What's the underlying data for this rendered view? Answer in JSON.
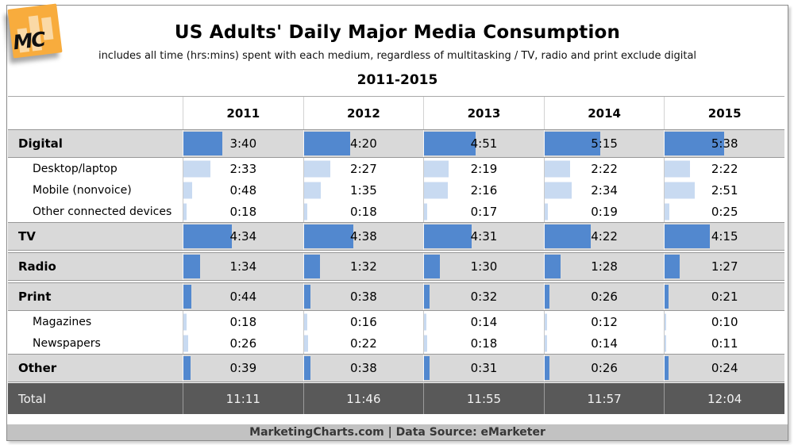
{
  "logo": {
    "text": "MC"
  },
  "header": {
    "title": "US Adults' Daily Major Media Consumption",
    "subtitle": "includes all time (hrs:mins) spent with each medium, regardless of multitasking / TV, radio and print exclude digital",
    "period": "2011-2015"
  },
  "chart_data": {
    "type": "table",
    "title": "US Adults' Daily Major Media Consumption",
    "subtitle": "includes all time (hrs:mins) spent with each medium, regardless of multitasking / TV, radio and print exclude digital",
    "period": "2011-2015",
    "unit": "hrs:mins per day",
    "columns": [
      "2011",
      "2012",
      "2013",
      "2014",
      "2015"
    ],
    "rows": [
      {
        "label": "Digital",
        "level": "main",
        "values": [
          "3:40",
          "4:20",
          "4:51",
          "5:15",
          "5:38"
        ]
      },
      {
        "label": "Desktop/laptop",
        "level": "sub",
        "values": [
          "2:33",
          "2:27",
          "2:19",
          "2:22",
          "2:22"
        ]
      },
      {
        "label": "Mobile (nonvoice)",
        "level": "sub",
        "values": [
          "0:48",
          "1:35",
          "2:16",
          "2:34",
          "2:51"
        ]
      },
      {
        "label": "Other connected devices",
        "level": "sub",
        "values": [
          "0:18",
          "0:18",
          "0:17",
          "0:19",
          "0:25"
        ]
      },
      {
        "label": "TV",
        "level": "main",
        "values": [
          "4:34",
          "4:38",
          "4:31",
          "4:22",
          "4:15"
        ]
      },
      {
        "label": "Radio",
        "level": "main",
        "values": [
          "1:34",
          "1:32",
          "1:30",
          "1:28",
          "1:27"
        ]
      },
      {
        "label": "Print",
        "level": "main",
        "values": [
          "0:44",
          "0:38",
          "0:32",
          "0:26",
          "0:21"
        ]
      },
      {
        "label": "Magazines",
        "level": "sub",
        "values": [
          "0:18",
          "0:16",
          "0:14",
          "0:12",
          "0:10"
        ]
      },
      {
        "label": "Newspapers",
        "level": "sub",
        "values": [
          "0:26",
          "0:22",
          "0:18",
          "0:14",
          "0:11"
        ]
      },
      {
        "label": "Other",
        "level": "main",
        "values": [
          "0:39",
          "0:38",
          "0:31",
          "0:26",
          "0:24"
        ]
      },
      {
        "label": "Total",
        "level": "total",
        "values": [
          "11:11",
          "11:46",
          "11:55",
          "11:57",
          "12:04"
        ]
      }
    ],
    "layout": {
      "bars": "embedded horizontal, proportional to minutes",
      "legend": "none",
      "grid": "row stripes"
    }
  },
  "footer": {
    "text": "MarketingCharts.com | Data Source: eMarketer"
  },
  "colors": {
    "bar_main": "#5288CF",
    "bar_sub": "#C8DAF1",
    "stripe_gray": "#D9D9D9",
    "total_bg": "#595959",
    "footer_bg": "#C2C2C2",
    "logo_orange": "#F8AC3D",
    "logo_bar": "#FAD9A6"
  }
}
